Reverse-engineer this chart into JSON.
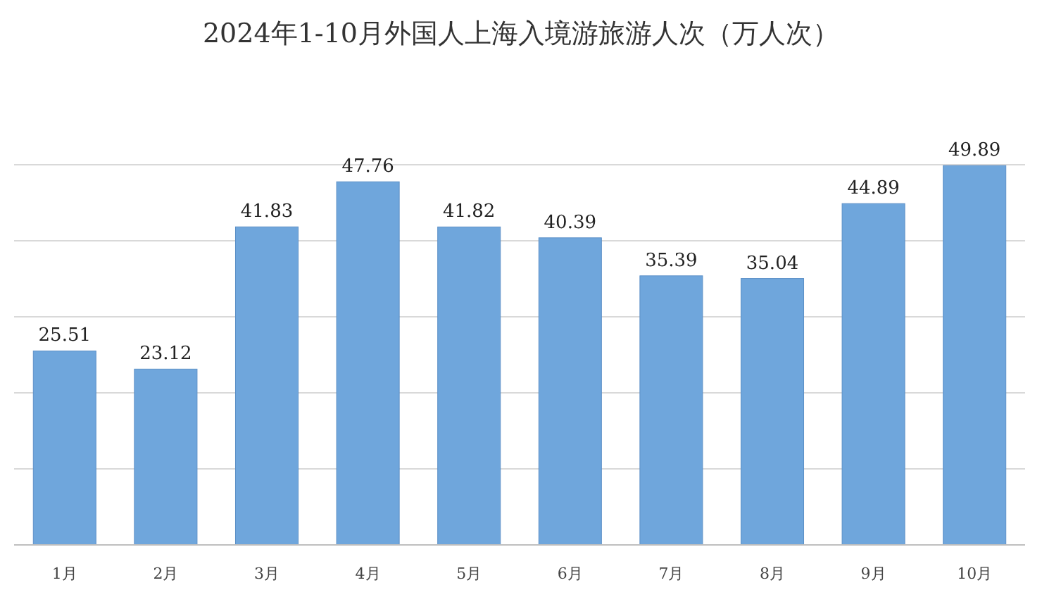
{
  "chart_data": {
    "type": "bar",
    "title": "2024年1-10月外国人上海入境游旅游人次（万人次）",
    "categories": [
      "1月",
      "2月",
      "3月",
      "4月",
      "5月",
      "6月",
      "7月",
      "8月",
      "9月",
      "10月"
    ],
    "values": [
      25.51,
      23.12,
      41.83,
      47.76,
      41.82,
      40.39,
      35.39,
      35.04,
      44.89,
      49.89
    ],
    "color": "#6fa6dc",
    "data_labels": true,
    "grid": "y",
    "tick_labels": "x",
    "ylim": [
      0,
      50
    ],
    "yticks": [
      {
        "value": 0,
        "label": null
      },
      {
        "value": 10,
        "label": null
      },
      {
        "value": 20,
        "label": null
      },
      {
        "value": 30,
        "label": null
      },
      {
        "value": 40,
        "label": null
      },
      {
        "value": 50,
        "label": null
      }
    ]
  }
}
